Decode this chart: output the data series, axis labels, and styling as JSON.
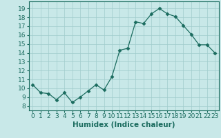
{
  "x": [
    0,
    1,
    2,
    3,
    4,
    5,
    6,
    7,
    8,
    9,
    10,
    11,
    12,
    13,
    14,
    15,
    16,
    17,
    18,
    19,
    20,
    21,
    22,
    23
  ],
  "y": [
    10.4,
    9.5,
    9.4,
    8.7,
    9.5,
    8.4,
    9.0,
    9.7,
    10.4,
    9.8,
    11.3,
    14.3,
    14.5,
    17.5,
    17.3,
    18.4,
    19.0,
    18.4,
    18.1,
    17.1,
    16.1,
    14.9,
    14.9,
    14.0
  ],
  "line_color": "#1a6b5e",
  "marker": "D",
  "marker_size": 2.5,
  "bg_color": "#c8e8e8",
  "grid_color": "#a0cccc",
  "xlabel": "Humidex (Indice chaleur)",
  "xlabel_fontsize": 7.5,
  "xlabel_fontweight": "bold",
  "xlim": [
    -0.5,
    23.5
  ],
  "ylim": [
    7.5,
    19.8
  ],
  "xticks": [
    0,
    1,
    2,
    3,
    4,
    5,
    6,
    7,
    8,
    9,
    10,
    11,
    12,
    13,
    14,
    15,
    16,
    17,
    18,
    19,
    20,
    21,
    22,
    23
  ],
  "yticks": [
    8,
    9,
    10,
    11,
    12,
    13,
    14,
    15,
    16,
    17,
    18,
    19
  ],
  "tick_fontsize": 6.5
}
